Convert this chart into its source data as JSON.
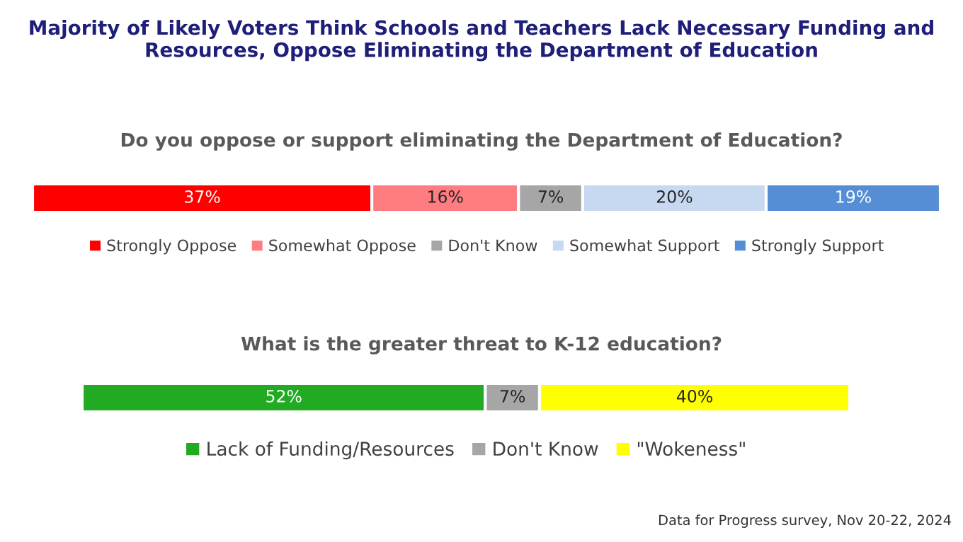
{
  "chart_data": [
    {
      "type": "bar",
      "orientation": "horizontal",
      "stacked": true,
      "title": "Majority of Likely Voters Think Schools and Teachers Lack Necessary Funding and Resources, Oppose Eliminating the Department of Education",
      "subtitle": "Do you oppose or support eliminating the Department of Education?",
      "categories": [
        null
      ],
      "series": [
        {
          "name": "Strongly Oppose",
          "color": "#ff0000",
          "values": [
            37
          ],
          "value_labels": [
            "37%"
          ]
        },
        {
          "name": "Somewhat Oppose",
          "color": "#ff7c80",
          "values": [
            16
          ],
          "value_labels": [
            "16%"
          ]
        },
        {
          "name": "Don't Know",
          "color": "#a6a6a6",
          "values": [
            7
          ],
          "value_labels": [
            "7%"
          ]
        },
        {
          "name": "Somewhat Support",
          "color": "#c6d9f0",
          "values": [
            20
          ],
          "value_labels": [
            "20%"
          ]
        },
        {
          "name": "Strongly Support",
          "color": "#558ed5",
          "values": [
            19
          ],
          "value_labels": [
            "19%"
          ]
        }
      ],
      "legend": "bottom"
    },
    {
      "type": "bar",
      "orientation": "horizontal",
      "stacked": true,
      "title": "What is the greater threat to K-12 education?",
      "categories": [
        null
      ],
      "series": [
        {
          "name": "Lack of Funding/Resources",
          "color": "#22aa22",
          "values": [
            52
          ],
          "value_labels": [
            "52%"
          ]
        },
        {
          "name": "Don't Know",
          "color": "#a6a6a6",
          "values": [
            7
          ],
          "value_labels": [
            "7%"
          ]
        },
        {
          "name": "\"Wokeness\"",
          "color": "#ffff00",
          "values": [
            40
          ],
          "value_labels": [
            "40%"
          ]
        }
      ],
      "legend": "bottom",
      "annotations": [
        "Data for Progress survey, Nov 20-22, 2024"
      ]
    }
  ]
}
